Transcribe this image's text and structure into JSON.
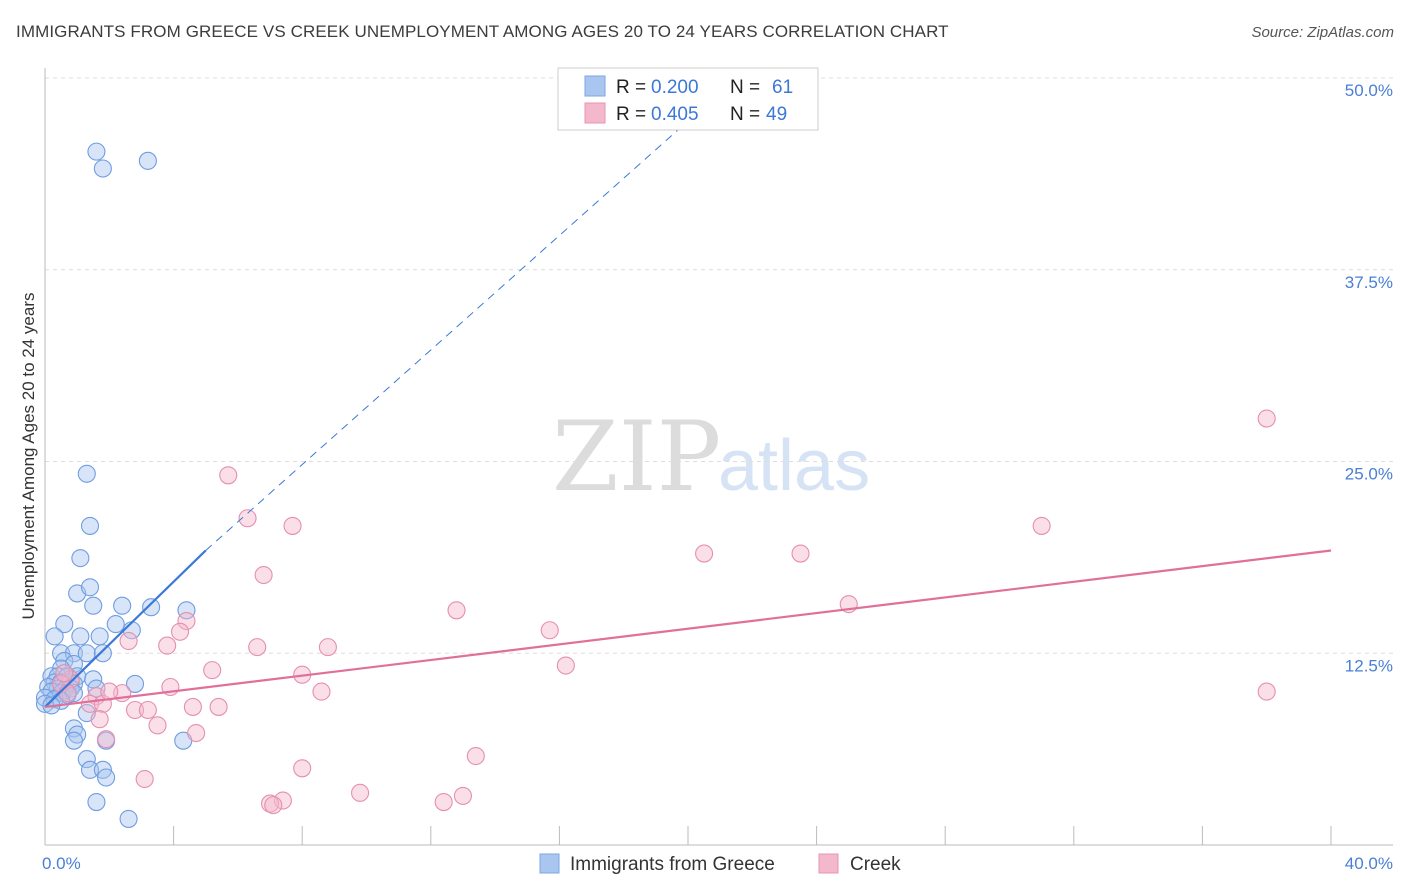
{
  "title": "IMMIGRANTS FROM GREECE VS CREEK UNEMPLOYMENT AMONG AGES 20 TO 24 YEARS CORRELATION CHART",
  "source": "Source: ZipAtlas.com",
  "watermark": {
    "zip": "ZIP",
    "atlas": "atlas"
  },
  "colors": {
    "blue": "#3b78d8",
    "blue_fill": "#a9c6f0",
    "pink": "#e0709a",
    "pink_fill": "#f4b8cc",
    "grid": "#dddddd",
    "tick_text": "#4a7fd4"
  },
  "chart_data": {
    "type": "scatter",
    "title": "IMMIGRANTS FROM GREECE VS CREEK UNEMPLOYMENT AMONG AGES 20 TO 24 YEARS CORRELATION CHART",
    "xlabel": "",
    "ylabel": "Unemployment Among Ages 20 to 24 years",
    "xlim": [
      0,
      40
    ],
    "ylim": [
      0,
      50
    ],
    "x_tick_labels": [
      {
        "value": 0,
        "label": "0.0%"
      },
      {
        "value": 40,
        "label": "40.0%"
      }
    ],
    "y_tick_labels": [
      {
        "value": 12.5,
        "label": "12.5%"
      },
      {
        "value": 25,
        "label": "25.0%"
      },
      {
        "value": 37.5,
        "label": "37.5%"
      },
      {
        "value": 50,
        "label": "50.0%"
      }
    ],
    "legend": [
      {
        "series": "Immigrants from Greece",
        "r_label": "R =",
        "r": "0.200",
        "n_label": "N =",
        "n": "61"
      },
      {
        "series": "Creek",
        "r_label": "R =",
        "r": "0.405",
        "n_label": "N =",
        "n": "49"
      }
    ],
    "series": [
      {
        "name": "Immigrants from Greece",
        "color": "#3b78d8",
        "points": [
          [
            1.6,
            45.2
          ],
          [
            1.8,
            44.1
          ],
          [
            3.2,
            44.6
          ],
          [
            1.3,
            24.2
          ],
          [
            1.4,
            20.8
          ],
          [
            1.1,
            18.7
          ],
          [
            1.0,
            16.4
          ],
          [
            1.4,
            16.8
          ],
          [
            1.5,
            15.6
          ],
          [
            2.4,
            15.6
          ],
          [
            3.3,
            15.5
          ],
          [
            4.4,
            15.3
          ],
          [
            0.6,
            14.4
          ],
          [
            2.2,
            14.4
          ],
          [
            2.7,
            14.0
          ],
          [
            0.3,
            13.6
          ],
          [
            1.1,
            13.6
          ],
          [
            1.7,
            13.6
          ],
          [
            0.5,
            12.5
          ],
          [
            0.9,
            12.5
          ],
          [
            1.3,
            12.5
          ],
          [
            1.8,
            12.5
          ],
          [
            0.6,
            12.0
          ],
          [
            0.9,
            11.8
          ],
          [
            0.5,
            11.5
          ],
          [
            0.2,
            11.0
          ],
          [
            0.4,
            11.0
          ],
          [
            0.7,
            11.0
          ],
          [
            1.0,
            11.0
          ],
          [
            1.5,
            10.8
          ],
          [
            0.3,
            10.6
          ],
          [
            0.5,
            10.6
          ],
          [
            0.8,
            10.6
          ],
          [
            0.9,
            10.5
          ],
          [
            2.8,
            10.5
          ],
          [
            0.1,
            10.3
          ],
          [
            0.4,
            10.2
          ],
          [
            0.6,
            10.1
          ],
          [
            0.8,
            10.2
          ],
          [
            1.6,
            10.2
          ],
          [
            0.2,
            10.0
          ],
          [
            0.5,
            9.9
          ],
          [
            0.7,
            9.8
          ],
          [
            0.9,
            9.9
          ],
          [
            0.0,
            9.6
          ],
          [
            0.3,
            9.5
          ],
          [
            0.5,
            9.4
          ],
          [
            0.0,
            9.2
          ],
          [
            0.2,
            9.1
          ],
          [
            1.3,
            8.6
          ],
          [
            0.9,
            7.6
          ],
          [
            1.0,
            7.2
          ],
          [
            0.9,
            6.8
          ],
          [
            1.9,
            6.8
          ],
          [
            4.3,
            6.8
          ],
          [
            1.3,
            5.6
          ],
          [
            1.4,
            4.9
          ],
          [
            1.8,
            4.9
          ],
          [
            1.9,
            4.4
          ],
          [
            1.6,
            2.8
          ],
          [
            2.6,
            1.7
          ]
        ]
      },
      {
        "name": "Creek",
        "color": "#e0709a",
        "points": [
          [
            38.0,
            27.8
          ],
          [
            5.7,
            24.1
          ],
          [
            6.3,
            21.3
          ],
          [
            7.7,
            20.8
          ],
          [
            31.0,
            20.8
          ],
          [
            20.5,
            19.0
          ],
          [
            23.5,
            19.0
          ],
          [
            6.8,
            17.6
          ],
          [
            25.0,
            15.7
          ],
          [
            12.8,
            15.3
          ],
          [
            4.4,
            14.6
          ],
          [
            4.2,
            13.9
          ],
          [
            15.7,
            14.0
          ],
          [
            2.6,
            13.3
          ],
          [
            3.8,
            13.0
          ],
          [
            6.6,
            12.9
          ],
          [
            8.8,
            12.9
          ],
          [
            16.2,
            11.7
          ],
          [
            5.2,
            11.4
          ],
          [
            8.0,
            11.1
          ],
          [
            0.8,
            10.8
          ],
          [
            0.5,
            10.5
          ],
          [
            3.9,
            10.3
          ],
          [
            8.6,
            10.0
          ],
          [
            38.0,
            10.0
          ],
          [
            0.7,
            9.9
          ],
          [
            1.6,
            9.7
          ],
          [
            2.4,
            9.9
          ],
          [
            1.4,
            9.2
          ],
          [
            1.8,
            9.2
          ],
          [
            4.6,
            9.0
          ],
          [
            5.4,
            9.0
          ],
          [
            2.8,
            8.8
          ],
          [
            3.2,
            8.8
          ],
          [
            1.7,
            8.2
          ],
          [
            3.5,
            7.8
          ],
          [
            4.7,
            7.3
          ],
          [
            1.9,
            6.9
          ],
          [
            13.4,
            5.8
          ],
          [
            8.0,
            5.0
          ],
          [
            3.1,
            4.3
          ],
          [
            9.8,
            3.4
          ],
          [
            13.0,
            3.2
          ],
          [
            7.4,
            2.9
          ],
          [
            7.0,
            2.7
          ],
          [
            7.1,
            2.6
          ],
          [
            12.4,
            2.8
          ],
          [
            0.6,
            11.2
          ],
          [
            2.0,
            10.0
          ]
        ]
      }
    ],
    "trendlines": [
      {
        "series": "Immigrants from Greece",
        "style": "solid",
        "from": [
          0.0,
          9.0
        ],
        "to": [
          5.0,
          19.2
        ]
      },
      {
        "series": "Immigrants from Greece",
        "style": "dashed",
        "from": [
          5.0,
          19.2
        ],
        "to": [
          21.5,
          50.0
        ]
      },
      {
        "series": "Creek",
        "style": "solid",
        "from": [
          0.0,
          9.0
        ],
        "to": [
          40.0,
          19.2
        ]
      }
    ]
  }
}
